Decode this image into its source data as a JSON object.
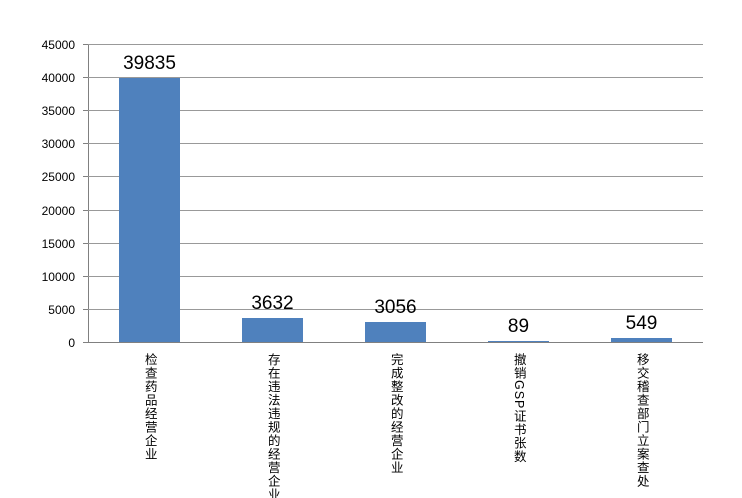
{
  "chart_data": {
    "type": "bar",
    "title": "",
    "xlabel": "",
    "ylabel": "",
    "categories": [
      "检查药品经营企业",
      "存在违法违规的经营企业",
      "完成整改的经营企业",
      "撤销GSP证书张数",
      "移交稽查部门立案查处"
    ],
    "values": [
      39835,
      3632,
      3056,
      89,
      549
    ],
    "data_labels": [
      "39835",
      "3632",
      "3056",
      "89",
      "549"
    ],
    "y_tick_labels": [
      "0",
      "5000",
      "10000",
      "15000",
      "20000",
      "25000",
      "30000",
      "35000",
      "40000",
      "45000"
    ],
    "ylim": [
      0,
      45000
    ],
    "ytick_step": 5000,
    "grid": true,
    "legend": false,
    "colors": {
      "bar": "#4F81BD",
      "gridline": "#999999",
      "axis": "#808080",
      "text": "#000000",
      "background": "#ffffff"
    }
  }
}
